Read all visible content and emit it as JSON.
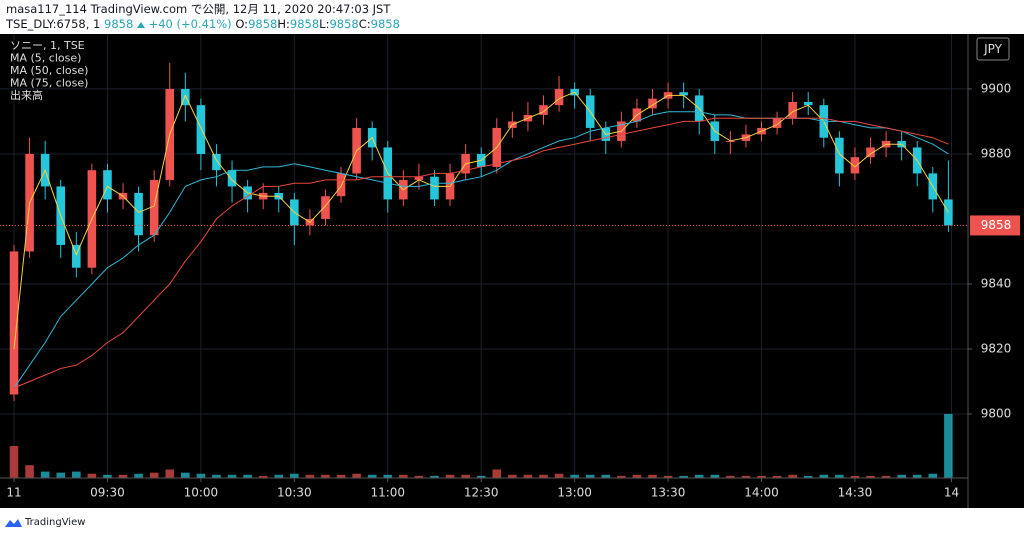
{
  "header": {
    "line1": "masa117_114 TradingView.com で公開, 12月 11, 2020 20:47:03 JST",
    "symbol": "TSE_DLY:6758, 1",
    "last": "9858",
    "change": "+40 (+0.41%)",
    "fields": [
      {
        "label": "O:",
        "value": "9858"
      },
      {
        "label": "H:",
        "value": "9858"
      },
      {
        "label": "L:",
        "value": "9858"
      },
      {
        "label": "C:",
        "value": "9858"
      }
    ]
  },
  "footer": {
    "brand": "TradingView"
  },
  "chart_data": {
    "type": "candlestick",
    "title": "ソニー, 1, TSE",
    "x": [
      0,
      5,
      10,
      15,
      20,
      25,
      30,
      35,
      40,
      45,
      50,
      55,
      60,
      65,
      70,
      75,
      80,
      85,
      90,
      95,
      100,
      105,
      110,
      115,
      120,
      125,
      130,
      135,
      140,
      145,
      150,
      155,
      160,
      165,
      170,
      175,
      180,
      185,
      190,
      195,
      200,
      205,
      210,
      215,
      220,
      225,
      230,
      235,
      240,
      245,
      250,
      255,
      260,
      265,
      270,
      275,
      280,
      285,
      290,
      295,
      300
    ],
    "open": [
      9806,
      9850,
      9880,
      9870,
      9852,
      9845,
      9875,
      9866,
      9868,
      9855,
      9872,
      9900,
      9895,
      9880,
      9875,
      9870,
      9866,
      9868,
      9866,
      9858,
      9860,
      9867,
      9874,
      9888,
      9882,
      9866,
      9872,
      9873,
      9866,
      9874,
      9880,
      9876,
      9888,
      9890,
      9892,
      9895,
      9900,
      9898,
      9888,
      9884,
      9890,
      9894,
      9897,
      9899,
      9898,
      9890,
      9884,
      9884,
      9886,
      9888,
      9891,
      9896,
      9895,
      9885,
      9874,
      9879,
      9882,
      9884,
      9882,
      9874,
      9866
    ],
    "high": [
      9852,
      9885,
      9884,
      9872,
      9856,
      9877,
      9877,
      9871,
      9870,
      9875,
      9908,
      9905,
      9897,
      9883,
      9878,
      9872,
      9871,
      9870,
      9868,
      9863,
      9869,
      9876,
      9891,
      9890,
      9884,
      9875,
      9877,
      9875,
      9877,
      9883,
      9882,
      9891,
      9893,
      9896,
      9898,
      9904,
      9902,
      9900,
      9890,
      9893,
      9897,
      9900,
      9902,
      9902,
      9900,
      9892,
      9887,
      9889,
      9890,
      9893,
      9899,
      9899,
      9897,
      9887,
      9882,
      9885,
      9887,
      9887,
      9884,
      9876,
      9878
    ],
    "low": [
      9804,
      9848,
      9866,
      9848,
      9842,
      9843,
      9862,
      9863,
      9850,
      9853,
      9870,
      9890,
      9875,
      9870,
      9865,
      9862,
      9863,
      9862,
      9852,
      9855,
      9858,
      9865,
      9872,
      9878,
      9862,
      9864,
      9869,
      9864,
      9864,
      9872,
      9873,
      9874,
      9885,
      9887,
      9889,
      9893,
      9894,
      9884,
      9880,
      9882,
      9888,
      9892,
      9894,
      9894,
      9886,
      9880,
      9880,
      9882,
      9884,
      9886,
      9889,
      9892,
      9882,
      9870,
      9872,
      9877,
      9879,
      9878,
      9870,
      9862,
      9856
    ],
    "close": [
      9850,
      9880,
      9870,
      9852,
      9845,
      9875,
      9866,
      9868,
      9855,
      9872,
      9900,
      9895,
      9880,
      9875,
      9870,
      9866,
      9868,
      9866,
      9858,
      9860,
      9867,
      9874,
      9888,
      9882,
      9866,
      9872,
      9873,
      9866,
      9874,
      9880,
      9876,
      9888,
      9890,
      9892,
      9895,
      9900,
      9898,
      9888,
      9884,
      9890,
      9894,
      9897,
      9899,
      9898,
      9890,
      9884,
      9884,
      9886,
      9888,
      9891,
      9896,
      9895,
      9885,
      9874,
      9879,
      9882,
      9884,
      9882,
      9874,
      9866,
      9858
    ],
    "volume_name": "出来高",
    "volume": [
      30,
      12,
      6,
      5,
      6,
      4,
      3,
      3,
      4,
      5,
      8,
      5,
      4,
      3,
      3,
      3,
      2,
      3,
      4,
      3,
      3,
      3,
      4,
      3,
      3,
      3,
      2,
      2,
      3,
      3,
      2,
      8,
      3,
      3,
      3,
      4,
      3,
      3,
      3,
      2,
      3,
      3,
      2,
      2,
      3,
      3,
      2,
      2,
      2,
      2,
      3,
      2,
      3,
      3,
      2,
      2,
      2,
      3,
      3,
      4,
      60
    ],
    "series": [
      {
        "name": "MA (5, close)",
        "color": "#f5d142",
        "values": [
          9820,
          9865,
          9875,
          9861,
          9849,
          9860,
          9870,
          9867,
          9862,
          9864,
          9886,
          9898,
          9888,
          9878,
          9872,
          9868,
          9867,
          9867,
          9862,
          9859,
          9864,
          9870,
          9881,
          9885,
          9874,
          9869,
          9872,
          9870,
          9870,
          9877,
          9878,
          9882,
          9889,
          9891,
          9893,
          9897,
          9899,
          9893,
          9886,
          9887,
          9892,
          9895,
          9898,
          9898,
          9894,
          9887,
          9884,
          9885,
          9887,
          9889,
          9893,
          9895,
          9890,
          9880,
          9876,
          9880,
          9883,
          9883,
          9878,
          9870,
          9862
        ]
      },
      {
        "name": "MA (50, close)",
        "color": "#2fb8d6",
        "values": [
          9808,
          9815,
          9822,
          9830,
          9835,
          9840,
          9845,
          9848,
          9852,
          9855,
          9862,
          9870,
          9872,
          9873,
          9875,
          9875,
          9876,
          9876,
          9877,
          9876,
          9875,
          9874,
          9873,
          9872,
          9871,
          9870,
          9870,
          9871,
          9871,
          9872,
          9873,
          9875,
          9878,
          9880,
          9882,
          9884,
          9885,
          9887,
          9888,
          9889,
          9890,
          9892,
          9893,
          9893,
          9893,
          9892,
          9892,
          9891,
          9891,
          9891,
          9891,
          9891,
          9890,
          9890,
          9889,
          9888,
          9888,
          9887,
          9885,
          9883,
          9880
        ]
      },
      {
        "name": "MA (75, close)",
        "color": "#e8463c",
        "values": [
          9808,
          9810,
          9812,
          9814,
          9815,
          9818,
          9822,
          9825,
          9830,
          9835,
          9840,
          9847,
          9853,
          9860,
          9864,
          9867,
          9870,
          9870,
          9871,
          9871,
          9872,
          9872,
          9872,
          9873,
          9873,
          9873,
          9873,
          9874,
          9874,
          9875,
          9876,
          9877,
          9878,
          9879,
          9881,
          9882,
          9883,
          9884,
          9885,
          9886,
          9887,
          9888,
          9889,
          9890,
          9890,
          9891,
          9891,
          9891,
          9891,
          9891,
          9891,
          9891,
          9891,
          9890,
          9890,
          9889,
          9888,
          9887,
          9886,
          9885,
          9883
        ]
      }
    ],
    "up_color": "#ef5350",
    "down_color": "#26c6da",
    "xlim": [
      -4.5,
      306.3
    ],
    "xticks": [
      {
        "value": 0,
        "label": "11"
      },
      {
        "value": 30,
        "label": "09:30"
      },
      {
        "value": 60,
        "label": "10:00"
      },
      {
        "value": 90,
        "label": "10:30"
      },
      {
        "value": 120,
        "label": "11:00"
      },
      {
        "value": 150,
        "label": "12:30"
      },
      {
        "value": 180,
        "label": "13:00"
      },
      {
        "value": 210,
        "label": "13:30"
      },
      {
        "value": 240,
        "label": "14:00"
      },
      {
        "value": 270,
        "label": "14:30"
      },
      {
        "value": 301,
        "label": "14"
      }
    ],
    "ylim": [
      9780.3,
      9916.9
    ],
    "yticks": [
      9800,
      9820,
      9840,
      9880,
      9900
    ],
    "grid": true,
    "currency": "JPY",
    "last_price": 9858
  }
}
